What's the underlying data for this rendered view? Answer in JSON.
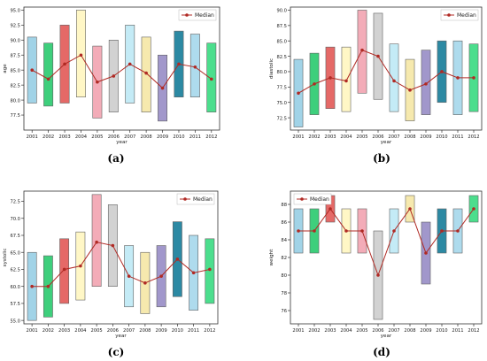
{
  "figure": {
    "legend_label": "Median",
    "median_color": "#b02a24",
    "box_colors": [
      "#9ad0e6",
      "#2ecc71",
      "#e35d5b",
      "#fff7c2",
      "#f2a6b2",
      "#cfcfcf",
      "#bfeaf6",
      "#f6e8a8",
      "#9a8fc7",
      "#1b7f9c",
      "#a8d8ec",
      "#3ddc84"
    ]
  },
  "chart_data": [
    {
      "type": "box",
      "caption": "(a)",
      "xlabel": "year",
      "ylabel": "age",
      "ylim": [
        75,
        95.5
      ],
      "yticks": [
        77.5,
        80.0,
        82.5,
        85.0,
        87.5,
        90.0,
        92.5,
        95.0
      ],
      "categories": [
        "2001",
        "2002",
        "2003",
        "2004",
        "2005",
        "2006",
        "2007",
        "2008",
        "2009",
        "2010",
        "2011",
        "2012"
      ],
      "low": [
        79.5,
        79.0,
        79.5,
        80.5,
        77.0,
        78.0,
        79.5,
        78.0,
        76.5,
        80.5,
        80.5,
        78.0
      ],
      "high": [
        90.5,
        89.5,
        92.5,
        95.0,
        89.0,
        90.0,
        92.5,
        90.5,
        87.5,
        91.5,
        91.0,
        89.5
      ],
      "median": [
        85.0,
        83.5,
        86.0,
        87.5,
        83.0,
        84.0,
        86.0,
        84.5,
        82.0,
        86.0,
        85.5,
        83.5
      ],
      "legend": "top-right",
      "grid": false
    },
    {
      "type": "box",
      "caption": "(b)",
      "xlabel": "year",
      "ylabel": "diastolic",
      "ylim": [
        70.5,
        90.5
      ],
      "yticks": [
        72.5,
        75.0,
        77.5,
        80.0,
        82.5,
        85.0,
        87.5,
        90.0
      ],
      "categories": [
        "2001",
        "2002",
        "2003",
        "2004",
        "2005",
        "2006",
        "2007",
        "2008",
        "2009",
        "2010",
        "2011",
        "2012"
      ],
      "low": [
        71.0,
        73.0,
        74.0,
        73.5,
        76.5,
        75.5,
        73.5,
        72.0,
        73.0,
        75.0,
        73.0,
        73.5
      ],
      "high": [
        82.0,
        83.0,
        84.0,
        84.0,
        90.0,
        89.5,
        84.5,
        82.0,
        83.5,
        85.0,
        85.0,
        84.5
      ],
      "median": [
        76.5,
        78.0,
        79.0,
        78.5,
        83.5,
        82.5,
        78.5,
        77.0,
        78.0,
        80.0,
        79.0,
        79.0
      ],
      "legend": "top-right",
      "grid": false
    },
    {
      "type": "box",
      "caption": "(c)",
      "xlabel": "year",
      "ylabel": "systolic",
      "ylim": [
        54.5,
        74
      ],
      "yticks": [
        55.0,
        57.5,
        60.0,
        62.5,
        65.0,
        67.5,
        70.0,
        72.5
      ],
      "categories": [
        "2001",
        "2002",
        "2003",
        "2004",
        "2005",
        "2006",
        "2007",
        "2008",
        "2009",
        "2010",
        "2011",
        "2012"
      ],
      "low": [
        55.0,
        55.5,
        57.5,
        58.0,
        60.0,
        60.0,
        57.0,
        56.0,
        57.0,
        58.5,
        56.5,
        57.5
      ],
      "high": [
        65.0,
        64.5,
        67.0,
        68.0,
        73.5,
        72.0,
        66.0,
        65.0,
        66.0,
        69.5,
        67.5,
        67.0
      ],
      "median": [
        60.0,
        60.0,
        62.5,
        63.0,
        66.5,
        66.0,
        61.5,
        60.5,
        61.5,
        64.0,
        62.0,
        62.5
      ],
      "legend": "top-right",
      "grid": false
    },
    {
      "type": "box",
      "caption": "(d)",
      "xlabel": "year",
      "ylabel": "weight",
      "ylim": [
        74.5,
        89.5
      ],
      "yticks": [
        76,
        78,
        80,
        82,
        84,
        86,
        88
      ],
      "categories": [
        "2001",
        "2002",
        "2003",
        "2004",
        "2005",
        "2006",
        "2007",
        "2008",
        "2009",
        "2010",
        "2011",
        "2012"
      ],
      "low": [
        82.5,
        82.5,
        86.0,
        82.5,
        82.5,
        75.0,
        82.5,
        86.0,
        79.0,
        82.5,
        82.5,
        86.0
      ],
      "high": [
        87.5,
        87.5,
        89.0,
        87.5,
        87.5,
        85.0,
        87.5,
        89.0,
        86.0,
        87.5,
        87.5,
        89.0
      ],
      "median": [
        85.0,
        85.0,
        87.5,
        85.0,
        85.0,
        80.0,
        85.0,
        87.5,
        82.5,
        85.0,
        85.0,
        87.5
      ],
      "legend": "top-left",
      "grid": false
    }
  ]
}
